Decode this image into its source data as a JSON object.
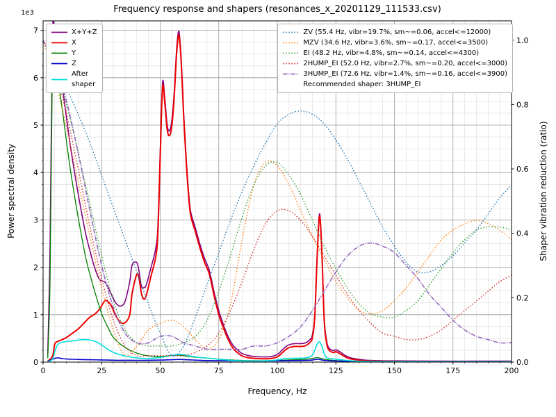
{
  "chart_data": {
    "type": "line",
    "title": "Frequency response and shapers (resonances_x_20201129_111533.csv)",
    "xlabel": "Frequency, Hz",
    "ylabel_left": "Power spectral density",
    "ylabel_right": "Shaper vibration reduction (ratio)",
    "y_left_offset_text": "1e3",
    "xlim": [
      0,
      200
    ],
    "ylim_left": [
      0,
      7200
    ],
    "ylim_right": [
      0,
      1.06
    ],
    "xticks": [
      0,
      25,
      50,
      75,
      100,
      125,
      150,
      175,
      200
    ],
    "yticks_left": [
      0,
      1,
      2,
      3,
      4,
      5,
      6,
      7
    ],
    "yticks_left_scale": 1000,
    "yticks_right": [
      0.0,
      0.2,
      0.4,
      0.6,
      0.8,
      1.0
    ],
    "x_minor_step": 5,
    "y_left_minor_step": 250,
    "grid": "both",
    "legend_position_left": "upper left",
    "legend_position_right": "upper right",
    "recommendation": "Recommended shaper: 3HUMP_EI",
    "psd_series": [
      {
        "name": "X+Y+Z",
        "legend": "X+Y+Z",
        "color": "#800080",
        "style": "solid",
        "width": 1.6,
        "axis": "left",
        "x": [
          2,
          3,
          4,
          5,
          6,
          8,
          10,
          12,
          15,
          18,
          20,
          22,
          24,
          26,
          27,
          29,
          31,
          33,
          35,
          37,
          38,
          40,
          41,
          42,
          43,
          44,
          46,
          48,
          49,
          50,
          51,
          52,
          53,
          54,
          55,
          56,
          57,
          58,
          59,
          60,
          61,
          62,
          63,
          65,
          67,
          69,
          71,
          73,
          75,
          77,
          79,
          81,
          83,
          85,
          88,
          91,
          94,
          97,
          100,
          102,
          104,
          106,
          108,
          110,
          112,
          114,
          115,
          116,
          117,
          118,
          119,
          120,
          121,
          122,
          124,
          125,
          127,
          129,
          131,
          134,
          138,
          145,
          155,
          170,
          185,
          200
        ],
        "y": [
          150,
          2500,
          6900,
          6950,
          6600,
          5900,
          5150,
          4450,
          3550,
          2750,
          2350,
          2000,
          1750,
          1700,
          1650,
          1450,
          1250,
          1180,
          1280,
          1700,
          2050,
          2100,
          1900,
          1600,
          1570,
          1620,
          1980,
          2380,
          2850,
          4450,
          5900,
          5550,
          5000,
          4880,
          5120,
          5700,
          6600,
          6980,
          6380,
          5280,
          4380,
          3680,
          3180,
          2830,
          2480,
          2180,
          1930,
          1480,
          1080,
          790,
          540,
          360,
          260,
          180,
          135,
          115,
          110,
          115,
          160,
          250,
          340,
          380,
          390,
          390,
          405,
          480,
          580,
          1000,
          2250,
          3130,
          2400,
          950,
          470,
          300,
          240,
          260,
          210,
          140,
          95,
          65,
          40,
          30,
          25,
          20,
          20,
          20
        ]
      },
      {
        "name": "X",
        "legend": "X",
        "color": "#ee0000",
        "style": "solid",
        "width": 2.0,
        "axis": "left",
        "x": [
          2,
          4,
          5,
          6,
          8,
          10,
          12,
          15,
          18,
          20,
          22,
          24,
          26,
          27,
          29,
          31,
          33,
          35,
          37,
          38,
          40,
          41,
          42,
          43,
          44,
          46,
          48,
          49,
          50,
          51,
          52,
          53,
          54,
          55,
          56,
          57,
          58,
          59,
          60,
          61,
          62,
          63,
          65,
          67,
          69,
          71,
          73,
          75,
          77,
          79,
          81,
          83,
          85,
          88,
          91,
          94,
          97,
          100,
          102,
          104,
          106,
          108,
          110,
          112,
          114,
          115,
          116,
          117,
          118,
          119,
          120,
          121,
          122,
          124,
          125,
          127,
          129,
          131,
          134,
          138,
          145,
          155,
          170,
          185,
          200
        ],
        "y": [
          20,
          120,
          380,
          430,
          470,
          520,
          590,
          700,
          850,
          950,
          1010,
          1110,
          1270,
          1300,
          1200,
          980,
          840,
          830,
          1000,
          1450,
          1850,
          1750,
          1450,
          1330,
          1400,
          1800,
          2200,
          2700,
          4300,
          5800,
          5450,
          4900,
          4780,
          5000,
          5600,
          6500,
          6900,
          6300,
          5200,
          4300,
          3600,
          3100,
          2750,
          2400,
          2100,
          1850,
          1400,
          1000,
          720,
          480,
          300,
          200,
          130,
          90,
          75,
          70,
          75,
          110,
          190,
          280,
          320,
          330,
          330,
          345,
          420,
          520,
          950,
          2200,
          3080,
          2350,
          900,
          420,
          260,
          200,
          220,
          170,
          110,
          70,
          45,
          25,
          18,
          12,
          10,
          10,
          10
        ]
      },
      {
        "name": "Y",
        "legend": "Y",
        "color": "#007f00",
        "style": "solid",
        "width": 1.3,
        "axis": "left",
        "x": [
          2,
          3,
          4,
          5,
          6,
          8,
          10,
          12,
          15,
          18,
          20,
          22,
          25,
          28,
          30,
          33,
          36,
          39,
          42,
          45,
          48,
          51,
          54,
          57,
          60,
          63,
          66,
          70,
          75,
          80,
          85,
          90,
          95,
          100,
          105,
          110,
          114,
          117,
          119,
          122,
          126,
          130,
          140,
          150,
          165,
          180,
          200
        ],
        "y": [
          80,
          1800,
          6350,
          6500,
          6100,
          5400,
          4650,
          3950,
          3050,
          2250,
          1850,
          1500,
          1020,
          700,
          520,
          380,
          280,
          210,
          160,
          130,
          115,
          120,
          135,
          150,
          135,
          115,
          100,
          85,
          65,
          45,
          35,
          30,
          30,
          35,
          45,
          55,
          70,
          95,
          75,
          45,
          30,
          22,
          14,
          10,
          10,
          10,
          10
        ]
      },
      {
        "name": "Z",
        "legend": "Z",
        "color": "#0000cd",
        "style": "solid",
        "width": 1.6,
        "axis": "left",
        "x": [
          2,
          4,
          6,
          8,
          10,
          15,
          20,
          25,
          30,
          35,
          40,
          45,
          50,
          54,
          58,
          62,
          66,
          70,
          80,
          90,
          100,
          108,
          114,
          117,
          119,
          122,
          130,
          140,
          160,
          180,
          200
        ],
        "y": [
          15,
          60,
          90,
          75,
          65,
          55,
          50,
          45,
          40,
          38,
          36,
          38,
          42,
          48,
          55,
          48,
          40,
          32,
          26,
          22,
          26,
          32,
          40,
          60,
          45,
          28,
          18,
          14,
          10,
          10,
          10
        ]
      },
      {
        "name": "After shaper",
        "legend": "After\nshaper",
        "color": "#00dddd",
        "style": "solid",
        "width": 1.6,
        "axis": "left",
        "x": [
          2,
          4,
          5,
          6,
          7,
          9,
          11,
          13,
          15,
          17,
          19,
          21,
          23,
          25,
          27,
          29,
          31,
          34,
          37,
          40,
          44,
          48,
          51,
          54,
          56,
          58,
          60,
          62,
          65,
          68,
          71,
          75,
          80,
          85,
          90,
          95,
          100,
          103,
          106,
          109,
          112,
          114,
          115,
          116,
          117,
          118,
          119,
          120,
          121,
          123,
          125,
          127,
          129,
          132,
          136,
          140,
          150,
          165,
          180,
          200
        ],
        "y": [
          8,
          60,
          220,
          350,
          400,
          425,
          440,
          450,
          465,
          475,
          470,
          455,
          420,
          360,
          290,
          230,
          185,
          140,
          110,
          90,
          75,
          85,
          105,
          130,
          150,
          162,
          155,
          135,
          110,
          92,
          80,
          60,
          38,
          26,
          22,
          26,
          45,
          70,
          80,
          82,
          88,
          115,
          150,
          250,
          380,
          430,
          345,
          180,
          100,
          70,
          62,
          50,
          38,
          26,
          16,
          12,
          10,
          8,
          8,
          8
        ]
      }
    ],
    "shaper_x": [
      0,
      5,
      10,
      15,
      20,
      25,
      30,
      35,
      40,
      45,
      50,
      55,
      60,
      65,
      70,
      75,
      80,
      85,
      90,
      95,
      100,
      105,
      110,
      115,
      120,
      125,
      130,
      135,
      140,
      145,
      150,
      155,
      160,
      165,
      170,
      175,
      180,
      185,
      190,
      195,
      200
    ],
    "shaper_series": [
      {
        "name": "ZV",
        "legend": "ZV (55.4 Hz, vibr=19.7%, sm~=0.06, accel<=12000)",
        "color": "#1f77b4",
        "style": "dotted",
        "width": 1.4,
        "axis": "right",
        "y": [
          1.0,
          0.93,
          0.85,
          0.77,
          0.68,
          0.58,
          0.48,
          0.38,
          0.28,
          0.18,
          0.09,
          0.02,
          0.05,
          0.14,
          0.24,
          0.34,
          0.44,
          0.53,
          0.61,
          0.68,
          0.74,
          0.77,
          0.78,
          0.77,
          0.74,
          0.69,
          0.63,
          0.56,
          0.49,
          0.42,
          0.36,
          0.31,
          0.28,
          0.28,
          0.3,
          0.33,
          0.37,
          0.41,
          0.46,
          0.51,
          0.55
        ]
      },
      {
        "name": "MZV",
        "legend": "MZV (34.6 Hz, vibr=3.6%, sm~=0.17, accel<=3500)",
        "color": "#ff7f0e",
        "style": "dotted",
        "width": 1.4,
        "axis": "right",
        "y": [
          1.0,
          0.88,
          0.73,
          0.56,
          0.39,
          0.23,
          0.1,
          0.02,
          0.05,
          0.1,
          0.12,
          0.13,
          0.11,
          0.07,
          0.04,
          0.07,
          0.18,
          0.38,
          0.55,
          0.62,
          0.61,
          0.55,
          0.47,
          0.39,
          0.32,
          0.25,
          0.2,
          0.16,
          0.15,
          0.16,
          0.19,
          0.23,
          0.28,
          0.33,
          0.38,
          0.41,
          0.43,
          0.44,
          0.43,
          0.41,
          0.38
        ]
      },
      {
        "name": "EI",
        "legend": "EI (48.2 Hz, vibr=4.8%, sm~=0.14, accel<=4300)",
        "color": "#2ca02c",
        "style": "dotted",
        "width": 1.4,
        "axis": "right",
        "y": [
          1.0,
          0.92,
          0.8,
          0.65,
          0.49,
          0.33,
          0.19,
          0.1,
          0.06,
          0.05,
          0.05,
          0.05,
          0.06,
          0.08,
          0.13,
          0.22,
          0.33,
          0.45,
          0.55,
          0.61,
          0.62,
          0.58,
          0.52,
          0.44,
          0.36,
          0.29,
          0.23,
          0.18,
          0.15,
          0.14,
          0.14,
          0.16,
          0.19,
          0.24,
          0.29,
          0.34,
          0.38,
          0.41,
          0.42,
          0.42,
          0.41
        ]
      },
      {
        "name": "2HUMP_EI",
        "legend": "2HUMP_EI (52.0 Hz, vibr=2.7%, sm~=0.20, accel<=3000)",
        "color": "#d62728",
        "style": "dotted",
        "width": 1.4,
        "axis": "right",
        "y": [
          1.0,
          0.91,
          0.77,
          0.6,
          0.42,
          0.26,
          0.13,
          0.05,
          0.02,
          0.02,
          0.02,
          0.02,
          0.02,
          0.03,
          0.05,
          0.09,
          0.16,
          0.25,
          0.35,
          0.43,
          0.47,
          0.47,
          0.44,
          0.39,
          0.33,
          0.27,
          0.21,
          0.16,
          0.12,
          0.09,
          0.08,
          0.07,
          0.07,
          0.08,
          0.1,
          0.13,
          0.16,
          0.19,
          0.22,
          0.25,
          0.27
        ]
      },
      {
        "name": "3HUMP_EI",
        "legend": "3HUMP_EI (72.6 Hz, vibr=1.4%, sm~=0.16, accel<=3900)",
        "color": "#9467bd",
        "style": "dashdot",
        "width": 1.6,
        "axis": "right",
        "y": [
          1.0,
          0.93,
          0.81,
          0.65,
          0.47,
          0.3,
          0.17,
          0.09,
          0.06,
          0.06,
          0.08,
          0.08,
          0.06,
          0.05,
          0.04,
          0.04,
          0.04,
          0.04,
          0.05,
          0.05,
          0.06,
          0.08,
          0.11,
          0.16,
          0.22,
          0.28,
          0.33,
          0.36,
          0.37,
          0.36,
          0.34,
          0.3,
          0.26,
          0.21,
          0.17,
          0.13,
          0.1,
          0.08,
          0.07,
          0.06,
          0.06
        ]
      }
    ]
  }
}
